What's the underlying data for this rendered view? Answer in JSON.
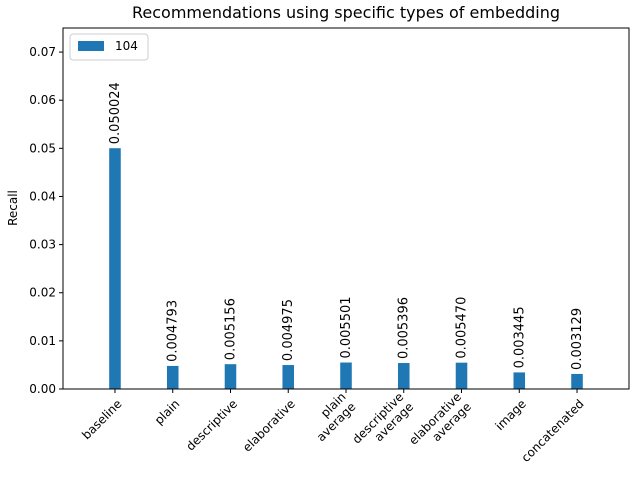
{
  "chart_data": {
    "type": "bar",
    "title": "Recommendations using specific types of embedding",
    "xlabel": "",
    "ylabel": "Recall",
    "categories": [
      [
        "baseline"
      ],
      [
        "plain"
      ],
      [
        "descriptive"
      ],
      [
        "elaborative"
      ],
      [
        "plain",
        "average"
      ],
      [
        "descriptive",
        "average"
      ],
      [
        "elaborative",
        "average"
      ],
      [
        "image"
      ],
      [
        "concatenated"
      ]
    ],
    "series": [
      {
        "name": "104",
        "color": "#1f77b4",
        "values": [
          0.050024,
          0.004793,
          0.005156,
          0.004975,
          0.005501,
          0.005396,
          0.00547,
          0.003445,
          0.003129
        ],
        "labels": [
          "0.050024",
          "0.004793",
          "0.005156",
          "0.004975",
          "0.005501",
          "0.005396",
          "0.005470",
          "0.003445",
          "0.003129"
        ]
      }
    ],
    "ylim": [
      0,
      0.075
    ],
    "yticks": [
      0.0,
      0.01,
      0.02,
      0.03,
      0.04,
      0.05,
      0.06,
      0.07
    ],
    "ytick_labels": [
      "0.00",
      "0.01",
      "0.02",
      "0.03",
      "0.04",
      "0.05",
      "0.06",
      "0.07"
    ],
    "grid": false,
    "legend_position": "top-left"
  }
}
